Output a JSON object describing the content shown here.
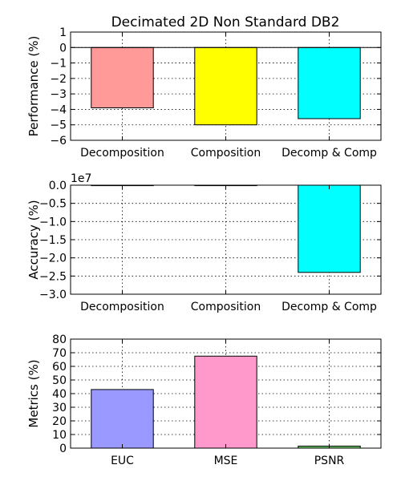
{
  "figure": {
    "title": "Decimated 2D Non Standard DB2"
  },
  "chart_data": [
    {
      "type": "bar",
      "categories": [
        "Decomposition",
        "Composition",
        "Decomp & Comp"
      ],
      "values": [
        -3.9,
        -5.0,
        -4.6
      ],
      "colors": [
        "#ff9a98",
        "#ffff00",
        "#00ffff"
      ],
      "ylabel": "Performance (%)",
      "ylim": [
        -6,
        1
      ],
      "yticks": [
        1,
        0,
        -1,
        -2,
        -3,
        -4,
        -5,
        -6
      ],
      "ytick_labels": [
        "1",
        "0",
        "−1",
        "−2",
        "−3",
        "−4",
        "−5",
        "−6"
      ],
      "zero_line": true,
      "grid": true
    },
    {
      "type": "bar",
      "categories": [
        "Decomposition",
        "Composition",
        "Decomp & Comp"
      ],
      "values": [
        -0.001,
        -0.001,
        -2.4
      ],
      "colors": [
        "#ff9a98",
        "#ffff00",
        "#00ffff"
      ],
      "ylabel": "Accuracy (%)",
      "ylim": [
        -3.0,
        0.0
      ],
      "yticks": [
        0.0,
        -0.5,
        -1.0,
        -1.5,
        -2.0,
        -2.5,
        -3.0
      ],
      "ytick_labels": [
        "0.0",
        "−0.5",
        "−1.0",
        "−1.5",
        "−2.0",
        "−2.5",
        "−3.0"
      ],
      "offset_label": "1e7",
      "grid": true
    },
    {
      "type": "bar",
      "categories": [
        "EUC",
        "MSE",
        "PSNR"
      ],
      "values": [
        43,
        67.5,
        1.5
      ],
      "colors": [
        "#9999ff",
        "#ff99cc",
        "#66cc66"
      ],
      "ylabel": "Metrics (%)",
      "ylim": [
        0,
        80
      ],
      "yticks": [
        80,
        70,
        60,
        50,
        40,
        30,
        20,
        10,
        0
      ],
      "ytick_labels": [
        "80",
        "70",
        "60",
        "50",
        "40",
        "30",
        "20",
        "10",
        "0"
      ],
      "grid": true
    }
  ]
}
